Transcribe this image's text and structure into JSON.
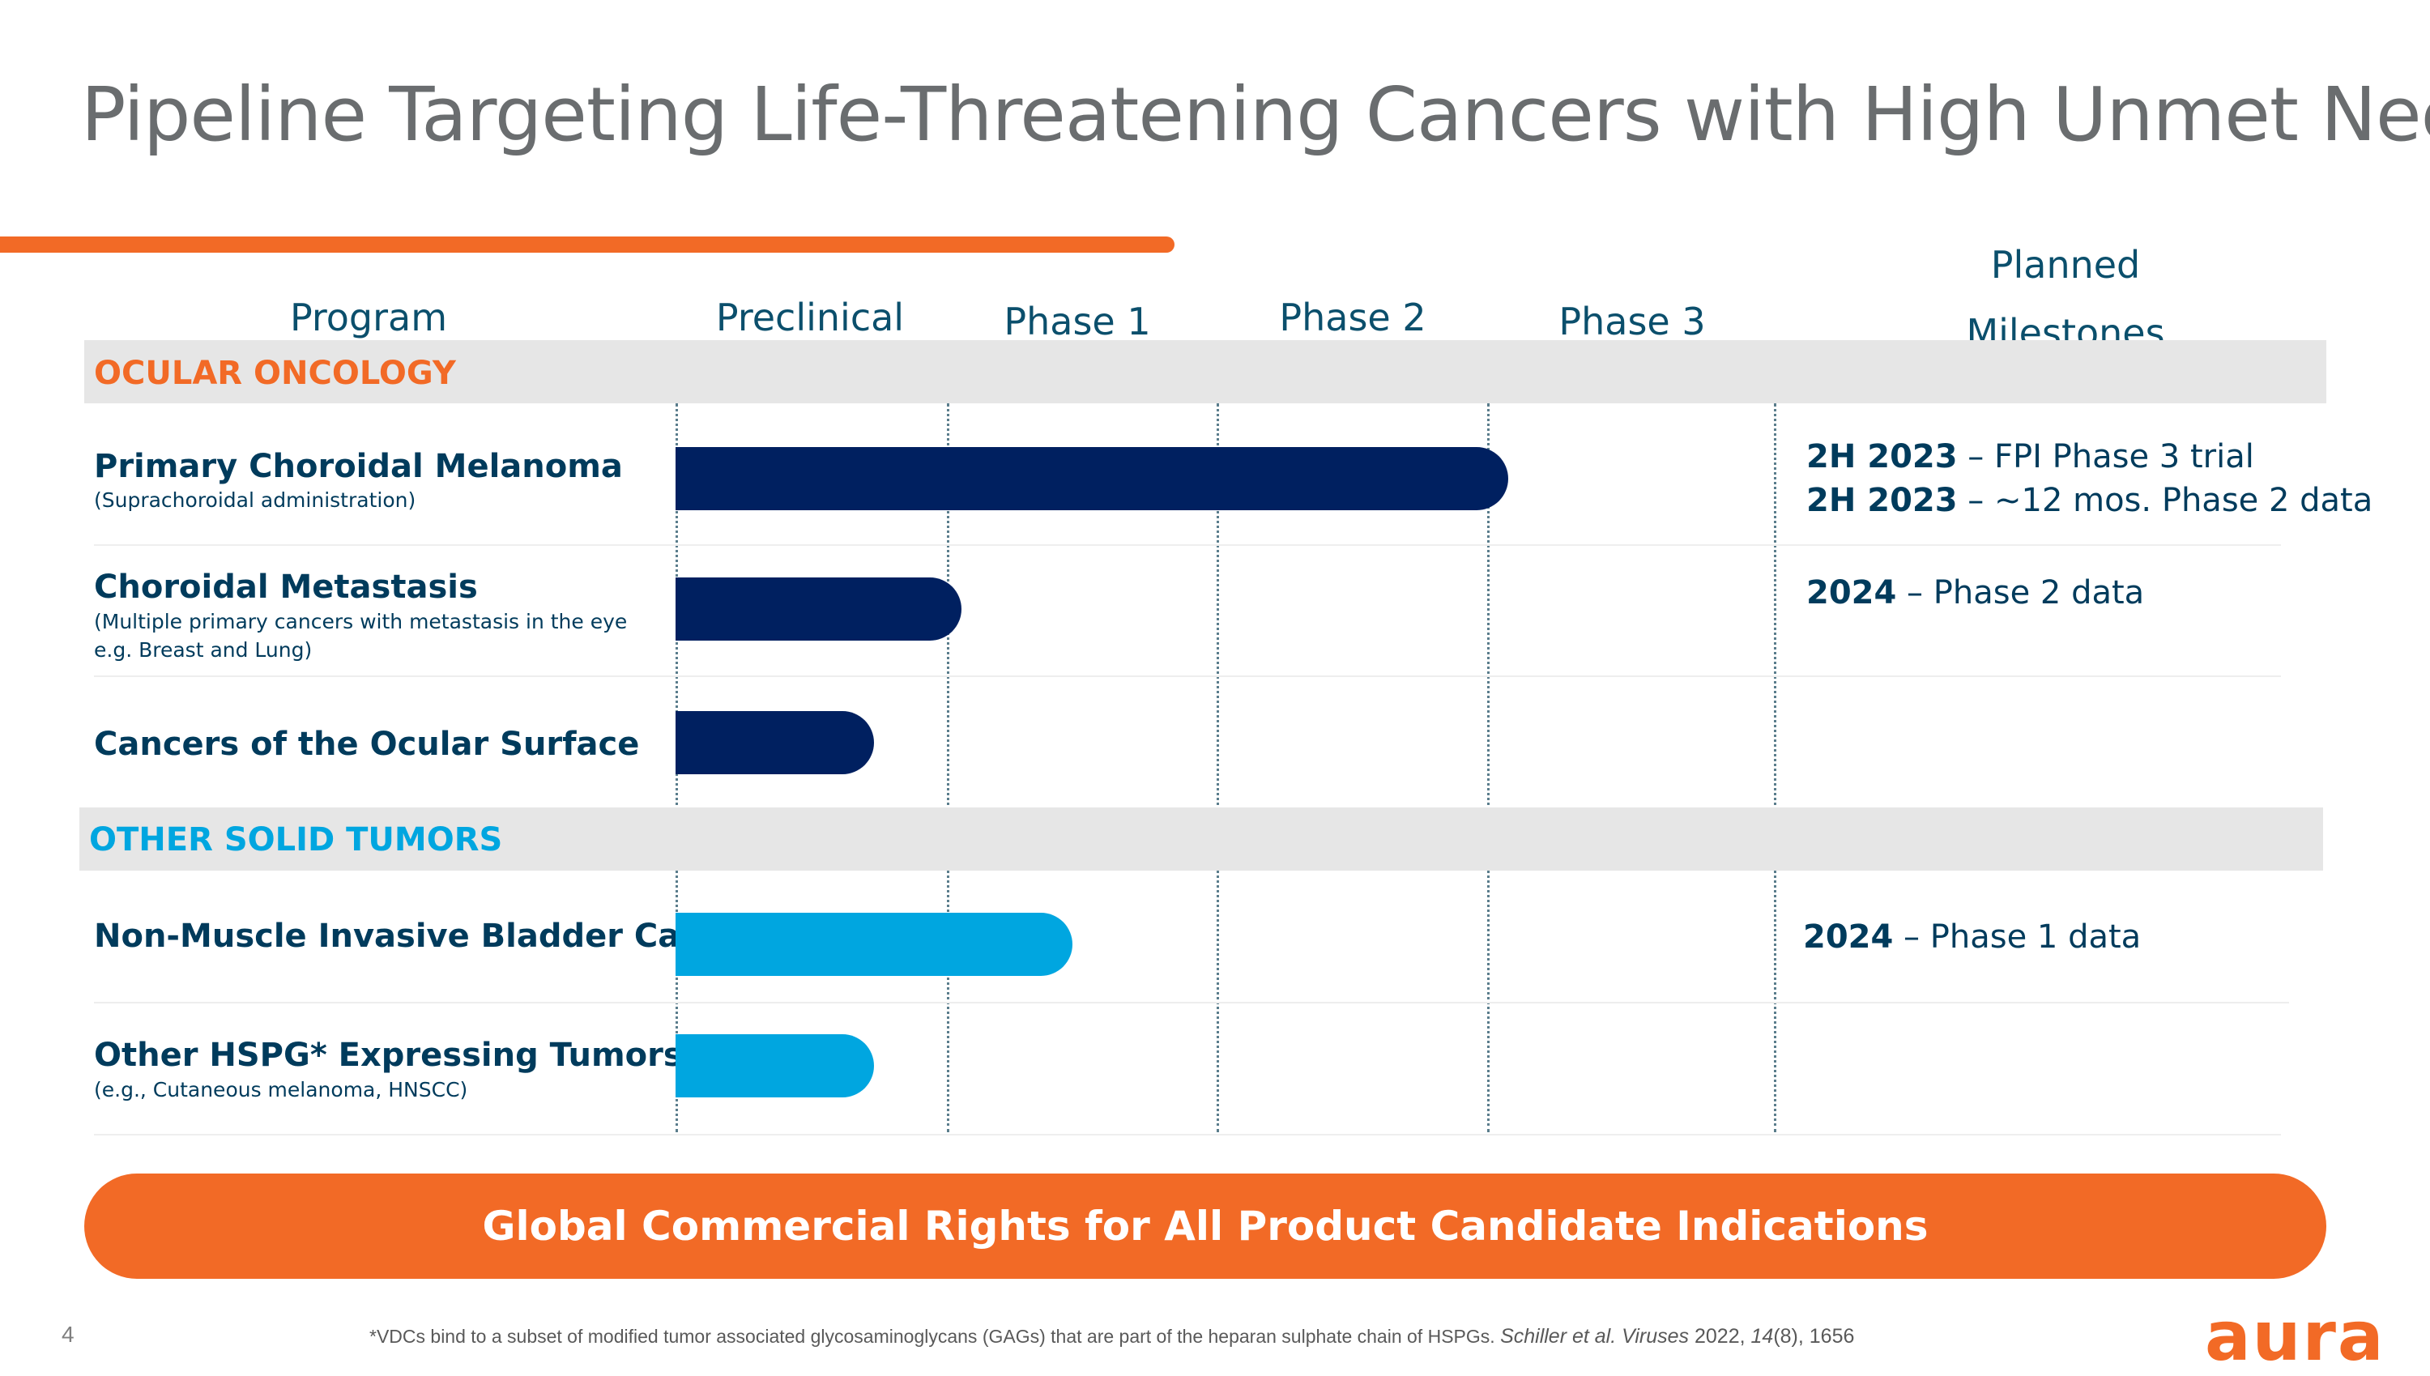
{
  "title": "Pipeline Targeting Life-Threatening Cancers with High Unmet Needs",
  "columns": {
    "program": "Program",
    "preclinical": "Preclinical",
    "phase1": "Phase 1",
    "phase2": "Phase 2",
    "phase3": "Phase 3",
    "milestones_line1": "Planned",
    "milestones_line2": "Milestones"
  },
  "sections": {
    "ocular": {
      "label": "OCULAR ONCOLOGY",
      "color": "#f26a26",
      "rows": [
        {
          "title": "Primary Choroidal Melanoma",
          "subtitle_line1": "(Suprachoroidal administration)",
          "progress": "Phase 3",
          "milestones": [
            {
              "date": "2H 2023",
              "text": " – FPI Phase 3 trial"
            },
            {
              "date": "2H 2023",
              "text": " – ~12 mos. Phase 2 data"
            }
          ]
        },
        {
          "title": "Choroidal Metastasis",
          "subtitle_line1": "(Multiple primary cancers with metastasis in the eye",
          "subtitle_line2": "e.g. Breast and Lung)",
          "progress": "Phase 1",
          "milestones": [
            {
              "date": "2024",
              "text": " – Phase 2 data"
            }
          ]
        },
        {
          "title": "Cancers of the Ocular Surface",
          "progress": "Preclinical"
        }
      ]
    },
    "solid": {
      "label": "OTHER SOLID TUMORS",
      "color": "#00a6e0",
      "rows": [
        {
          "title": "Non-Muscle Invasive Bladder Cancer",
          "progress": "Phase 1",
          "milestones": [
            {
              "date": "2024",
              "text": " – Phase 1 data"
            }
          ]
        },
        {
          "title": "Other HSPG* Expressing Tumors",
          "subtitle_line1": "(e.g., Cutaneous melanoma, HNSCC)",
          "progress": "Preclinical"
        }
      ]
    }
  },
  "banner": "Global Commercial Rights for All Product Candidate Indications",
  "page_number": "4",
  "footnote": {
    "text": "*VDCs bind to a subset of modified tumor associated glycosaminoglycans (GAGs) that are part of the heparan sulphate chain of HSPGs. ",
    "ref_authors": "Schiller et al. Viruses",
    "ref_year": " 2022, ",
    "ref_volume": "14",
    "ref_issue": "(8), 1656"
  },
  "logo": "aura",
  "colors": {
    "accent": "#f26a26",
    "navy": "#002060",
    "blue": "#00a6e0",
    "heading": "#0b4f6c"
  }
}
